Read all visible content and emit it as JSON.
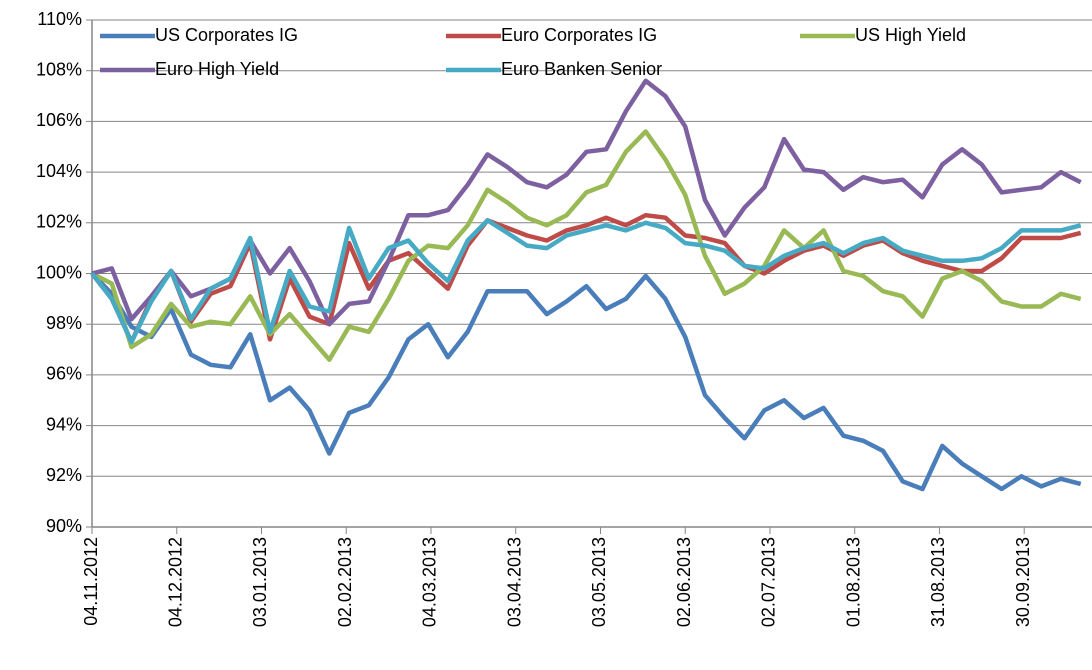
{
  "chart_data": {
    "type": "line",
    "x": [
      "04.11.2012",
      "11.11.2012",
      "18.11.2012",
      "25.11.2012",
      "02.12.2012",
      "09.12.2012",
      "16.12.2012",
      "23.12.2012",
      "30.12.2012",
      "06.01.2013",
      "13.01.2013",
      "20.01.2013",
      "27.01.2013",
      "03.02.2013",
      "10.02.2013",
      "17.02.2013",
      "24.02.2013",
      "03.03.2013",
      "10.03.2013",
      "17.03.2013",
      "24.03.2013",
      "31.03.2013",
      "07.04.2013",
      "14.04.2013",
      "21.04.2013",
      "28.04.2013",
      "05.05.2013",
      "12.05.2013",
      "19.05.2013",
      "26.05.2013",
      "02.06.2013",
      "09.06.2013",
      "16.06.2013",
      "23.06.2013",
      "30.06.2013",
      "07.07.2013",
      "14.07.2013",
      "21.07.2013",
      "28.07.2013",
      "04.08.2013",
      "11.08.2013",
      "18.08.2013",
      "25.08.2013",
      "01.09.2013",
      "08.09.2013",
      "15.09.2013",
      "22.09.2013",
      "29.09.2013",
      "06.10.2013",
      "13.10.2013",
      "20.10.2013"
    ],
    "xlim": [
      "04.11.2012",
      "24.10.2013"
    ],
    "xticks": [
      "04.11.2012",
      "04.12.2012",
      "03.01.2013",
      "02.02.2013",
      "04.03.2013",
      "03.04.2013",
      "03.05.2013",
      "02.06.2013",
      "02.07.2013",
      "01.08.2013",
      "31.08.2013",
      "30.09.2013"
    ],
    "ylim": [
      90,
      110
    ],
    "yticks": [
      {
        "value": 90,
        "label": "90%"
      },
      {
        "value": 92,
        "label": "92%"
      },
      {
        "value": 94,
        "label": "94%"
      },
      {
        "value": 96,
        "label": "96%"
      },
      {
        "value": 98,
        "label": "98%"
      },
      {
        "value": 100,
        "label": "100%"
      },
      {
        "value": 102,
        "label": "102%"
      },
      {
        "value": 104,
        "label": "104%"
      },
      {
        "value": 106,
        "label": "106%"
      },
      {
        "value": 108,
        "label": "108%"
      },
      {
        "value": 110,
        "label": "110%"
      }
    ],
    "grid": true,
    "legend": "top",
    "series": [
      {
        "name": "US Corporates IG",
        "color": "#4a7ebb",
        "values": [
          100,
          99.2,
          97.9,
          97.5,
          98.6,
          96.8,
          96.4,
          96.3,
          97.6,
          95.0,
          95.5,
          94.6,
          92.9,
          94.5,
          94.8,
          95.9,
          97.4,
          98.0,
          96.7,
          97.7,
          99.3,
          99.3,
          99.3,
          98.4,
          98.9,
          99.5,
          98.6,
          99.0,
          99.9,
          99.0,
          97.5,
          95.2,
          94.3,
          93.5,
          94.6,
          95.0,
          94.3,
          94.7,
          93.6,
          93.4,
          93.0,
          91.8,
          91.5,
          93.2,
          92.5,
          92.0,
          91.5,
          92.0,
          91.6,
          91.9,
          91.7
        ]
      },
      {
        "name": "Euro Corporates IG",
        "color": "#be4b48",
        "values": [
          100,
          99.0,
          97.3,
          99.0,
          100.1,
          98.1,
          99.2,
          99.5,
          101.2,
          97.4,
          99.8,
          98.3,
          98.0,
          101.2,
          99.4,
          100.5,
          100.8,
          100.1,
          99.4,
          101.1,
          102.1,
          101.8,
          101.5,
          101.3,
          101.7,
          101.9,
          102.2,
          101.9,
          102.3,
          102.2,
          101.5,
          101.4,
          101.2,
          100.3,
          100.0,
          100.5,
          100.9,
          101.1,
          100.7,
          101.1,
          101.3,
          100.8,
          100.5,
          100.3,
          100.1,
          100.1,
          100.6,
          101.4,
          101.4,
          101.4,
          101.6
        ]
      },
      {
        "name": "US High Yield",
        "color": "#98b954",
        "values": [
          100,
          99.6,
          97.1,
          97.6,
          98.8,
          97.9,
          98.1,
          98.0,
          99.1,
          97.6,
          98.4,
          97.5,
          96.6,
          97.9,
          97.7,
          99.0,
          100.5,
          101.1,
          101.0,
          101.9,
          103.3,
          102.8,
          102.2,
          101.9,
          102.3,
          103.2,
          103.5,
          104.8,
          105.6,
          104.5,
          103.1,
          100.7,
          99.2,
          99.6,
          100.3,
          101.7,
          101.0,
          101.7,
          100.1,
          99.9,
          99.3,
          99.1,
          98.3,
          99.8,
          100.1,
          99.7,
          98.9,
          98.7,
          98.7,
          99.2,
          99.0
        ]
      },
      {
        "name": "Euro High Yield",
        "color": "#7d60a0",
        "values": [
          100,
          100.2,
          98.2,
          99.1,
          100.1,
          99.1,
          99.4,
          99.8,
          101.3,
          100.0,
          101.0,
          99.7,
          98.0,
          98.8,
          98.9,
          100.5,
          102.3,
          102.3,
          102.5,
          103.5,
          104.7,
          104.2,
          103.6,
          103.4,
          103.9,
          104.8,
          104.9,
          106.4,
          107.6,
          107.0,
          105.8,
          102.9,
          101.5,
          102.6,
          103.4,
          105.3,
          104.1,
          104.0,
          103.3,
          103.8,
          103.6,
          103.7,
          103.0,
          104.3,
          104.9,
          104.3,
          103.2,
          103.3,
          103.4,
          104.0,
          103.6
        ]
      },
      {
        "name": "Euro Banken Senior",
        "color": "#46aac5",
        "values": [
          100,
          99.0,
          97.3,
          98.9,
          100.1,
          98.2,
          99.4,
          99.8,
          101.4,
          97.7,
          100.1,
          98.7,
          98.5,
          101.8,
          99.8,
          101.0,
          101.3,
          100.4,
          99.7,
          101.3,
          102.1,
          101.6,
          101.1,
          101.0,
          101.5,
          101.7,
          101.9,
          101.7,
          102.0,
          101.8,
          101.2,
          101.1,
          100.9,
          100.3,
          100.2,
          100.7,
          101.0,
          101.2,
          100.8,
          101.2,
          101.4,
          100.9,
          100.7,
          100.5,
          100.5,
          100.6,
          101.0,
          101.7,
          101.7,
          101.7,
          101.9
        ]
      }
    ]
  }
}
